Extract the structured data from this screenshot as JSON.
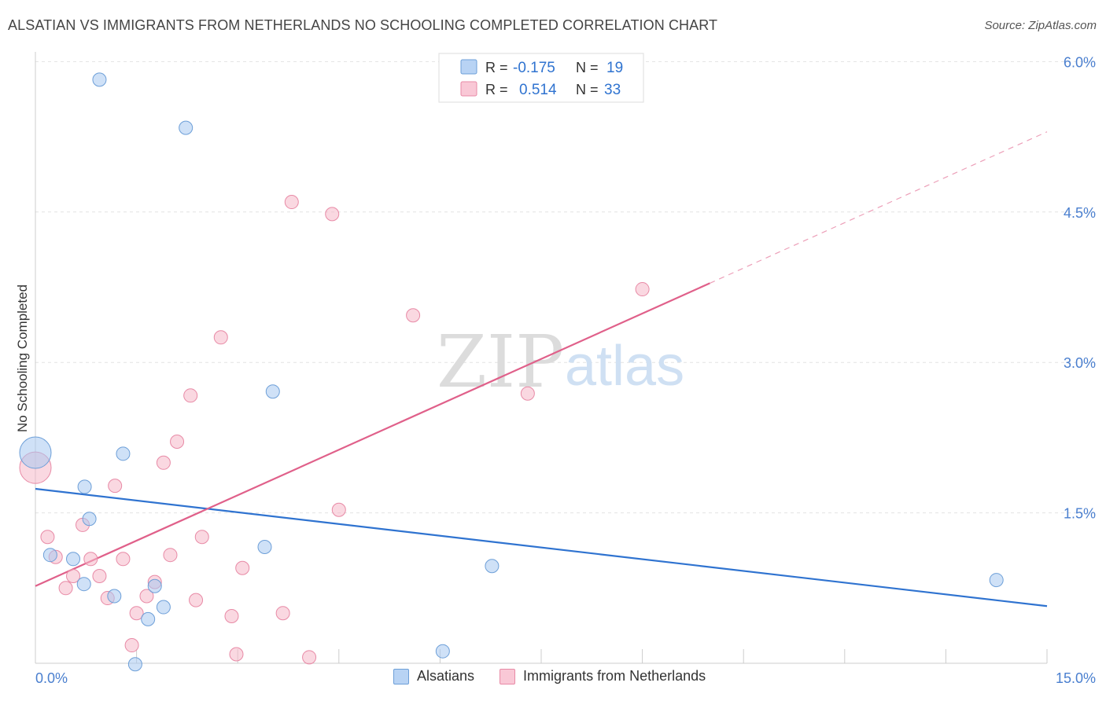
{
  "header": {
    "title": "ALSATIAN VS IMMIGRANTS FROM NETHERLANDS NO SCHOOLING COMPLETED CORRELATION CHART",
    "source": "Source: ZipAtlas.com"
  },
  "watermark": {
    "zip": "ZIP",
    "atlas": "atlas"
  },
  "stats_legend": [
    {
      "r_label": "R = ",
      "r_value": "-0.175",
      "n_label": "N = ",
      "n_value": "19",
      "color": "#a8c8f0"
    },
    {
      "r_label": "R = ",
      "r_value": "0.514",
      "n_label": "N = ",
      "n_value": "33",
      "color": "#f5b8c8"
    }
  ],
  "chart_data": {
    "type": "scatter",
    "title": "ALSATIAN VS IMMIGRANTS FROM NETHERLANDS NO SCHOOLING COMPLETED CORRELATION CHART",
    "xlabel": "",
    "ylabel": "No Schooling Completed",
    "xlim": [
      0,
      15
    ],
    "ylim": [
      0,
      6.15
    ],
    "x_tick_labels": [
      {
        "value": 0,
        "label": "0.0%"
      },
      {
        "value": 15,
        "label": "15.0%"
      }
    ],
    "y_tick_labels": [
      {
        "value": 6.0,
        "label": "6.0%"
      },
      {
        "value": 4.5,
        "label": "4.5%"
      },
      {
        "value": 3.0,
        "label": "3.0%"
      },
      {
        "value": 1.5,
        "label": "1.5%"
      }
    ],
    "y_gridlines": [
      6.0,
      4.5,
      3.0,
      1.5
    ],
    "x_minor_ticks": [
      1.5,
      3.0,
      4.5,
      6.0,
      7.5,
      9.0,
      10.5,
      12.0,
      13.5,
      15.0
    ],
    "grid": true,
    "legend_position": "bottom",
    "series": [
      {
        "name": "Alsatians",
        "color": "#a8c8f0",
        "stroke": "#6d9fd8",
        "line_color": "#2f73d0",
        "trend": {
          "x": [
            0,
            15
          ],
          "y": [
            1.74,
            0.57
          ]
        },
        "points": [
          {
            "x": 0.0,
            "y": 2.1,
            "big": true
          },
          {
            "x": 0.95,
            "y": 5.82
          },
          {
            "x": 2.23,
            "y": 5.34
          },
          {
            "x": 3.52,
            "y": 2.71
          },
          {
            "x": 1.3,
            "y": 2.09
          },
          {
            "x": 0.73,
            "y": 1.76
          },
          {
            "x": 0.8,
            "y": 1.44
          },
          {
            "x": 0.22,
            "y": 1.08
          },
          {
            "x": 0.56,
            "y": 1.04
          },
          {
            "x": 3.4,
            "y": 1.16
          },
          {
            "x": 0.72,
            "y": 0.79
          },
          {
            "x": 1.17,
            "y": 0.67
          },
          {
            "x": 1.77,
            "y": 0.77
          },
          {
            "x": 1.9,
            "y": 0.56
          },
          {
            "x": 1.67,
            "y": 0.44
          },
          {
            "x": 6.77,
            "y": 0.97
          },
          {
            "x": 14.25,
            "y": 0.83
          },
          {
            "x": 6.04,
            "y": 0.12
          },
          {
            "x": 1.48,
            "y": -0.01
          }
        ]
      },
      {
        "name": "Immigrants from Netherlands",
        "color": "#f5b8c8",
        "stroke": "#e88aa6",
        "line_color": "#e0608a",
        "trend": {
          "x": [
            0,
            10.0
          ],
          "y": [
            0.77,
            3.79
          ]
        },
        "trend_dashed": {
          "x": [
            10.0,
            15.0
          ],
          "y": [
            3.79,
            5.3
          ]
        },
        "points": [
          {
            "x": 0.0,
            "y": 1.95,
            "big": true
          },
          {
            "x": 3.8,
            "y": 4.6
          },
          {
            "x": 4.4,
            "y": 4.48
          },
          {
            "x": 9.0,
            "y": 3.73
          },
          {
            "x": 5.6,
            "y": 3.47
          },
          {
            "x": 2.75,
            "y": 3.25
          },
          {
            "x": 7.3,
            "y": 2.69
          },
          {
            "x": 2.3,
            "y": 2.67
          },
          {
            "x": 2.1,
            "y": 2.21
          },
          {
            "x": 1.9,
            "y": 2.0
          },
          {
            "x": 1.18,
            "y": 1.77
          },
          {
            "x": 4.5,
            "y": 1.53
          },
          {
            "x": 0.7,
            "y": 1.38
          },
          {
            "x": 0.18,
            "y": 1.26
          },
          {
            "x": 2.47,
            "y": 1.26
          },
          {
            "x": 0.3,
            "y": 1.06
          },
          {
            "x": 0.82,
            "y": 1.04
          },
          {
            "x": 1.3,
            "y": 1.04
          },
          {
            "x": 2.0,
            "y": 1.08
          },
          {
            "x": 3.07,
            "y": 0.95
          },
          {
            "x": 0.56,
            "y": 0.87
          },
          {
            "x": 0.95,
            "y": 0.87
          },
          {
            "x": 1.77,
            "y": 0.81
          },
          {
            "x": 0.45,
            "y": 0.75
          },
          {
            "x": 1.07,
            "y": 0.65
          },
          {
            "x": 1.65,
            "y": 0.67
          },
          {
            "x": 2.38,
            "y": 0.63
          },
          {
            "x": 1.5,
            "y": 0.5
          },
          {
            "x": 3.67,
            "y": 0.5
          },
          {
            "x": 2.91,
            "y": 0.47
          },
          {
            "x": 1.43,
            "y": 0.18
          },
          {
            "x": 2.98,
            "y": 0.09
          },
          {
            "x": 4.06,
            "y": 0.06
          }
        ]
      }
    ]
  }
}
